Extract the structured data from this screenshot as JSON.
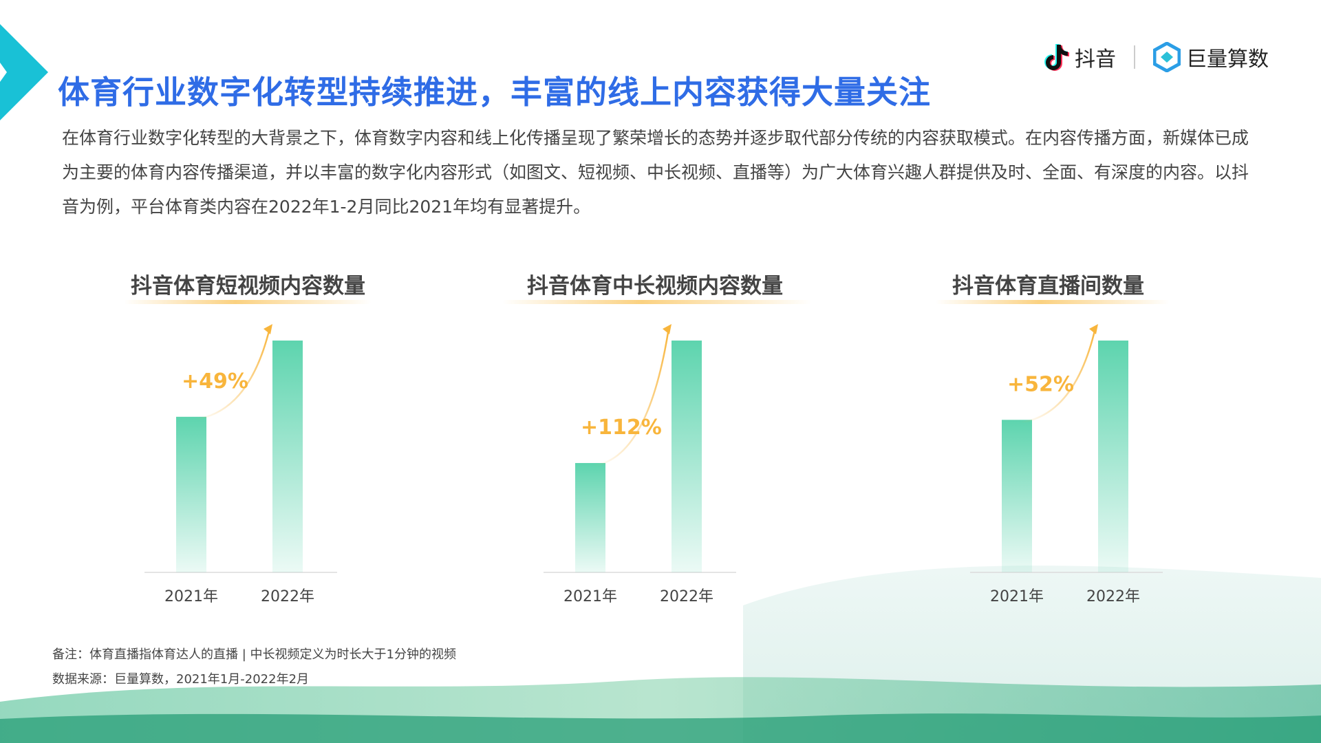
{
  "header": {
    "title": "体育行业数字化转型持续推进，丰富的线上内容获得大量关注",
    "logo_douyin": "抖音",
    "logo_juliang": "巨量算数"
  },
  "intro": "在体育行业数字化转型的大背景之下，体育数字内容和线上化传播呈现了繁荣增长的态势并逐步取代部分传统的内容获取模式。在内容传播方面，新媒体已成为主要的体育内容传播渠道，并以丰富的数字化内容形式（如图文、短视频、中长视频、直播等）为广大体育兴趣人群提供及时、全面、有深度的内容。以抖音为例，平台体育类内容在2022年1-2月同比2021年均有显著提升。",
  "colors": {
    "title": "#2f6ce6",
    "bar": "#5dd4ae",
    "growth": "#f8b53c",
    "corner": "#19c1d6"
  },
  "chart_data": [
    {
      "type": "bar",
      "title": "抖音体育短视频内容数量",
      "categories": [
        "2021年",
        "2022年"
      ],
      "values": [
        1.0,
        1.49
      ],
      "growth_label": "+49%"
    },
    {
      "type": "bar",
      "title": "抖音体育中长视频内容数量",
      "categories": [
        "2021年",
        "2022年"
      ],
      "values": [
        1.0,
        2.12
      ],
      "growth_label": "+112%"
    },
    {
      "type": "bar",
      "title": "抖音体育直播间数量",
      "categories": [
        "2021年",
        "2022年"
      ],
      "values": [
        1.0,
        1.52
      ],
      "growth_label": "+52%"
    }
  ],
  "notes": {
    "remark": "备注：体育直播指体育达人的直播 | 中长视频定义为时长大于1分钟的视频",
    "source": "数据来源：巨量算数，2021年1月-2022年2月"
  }
}
